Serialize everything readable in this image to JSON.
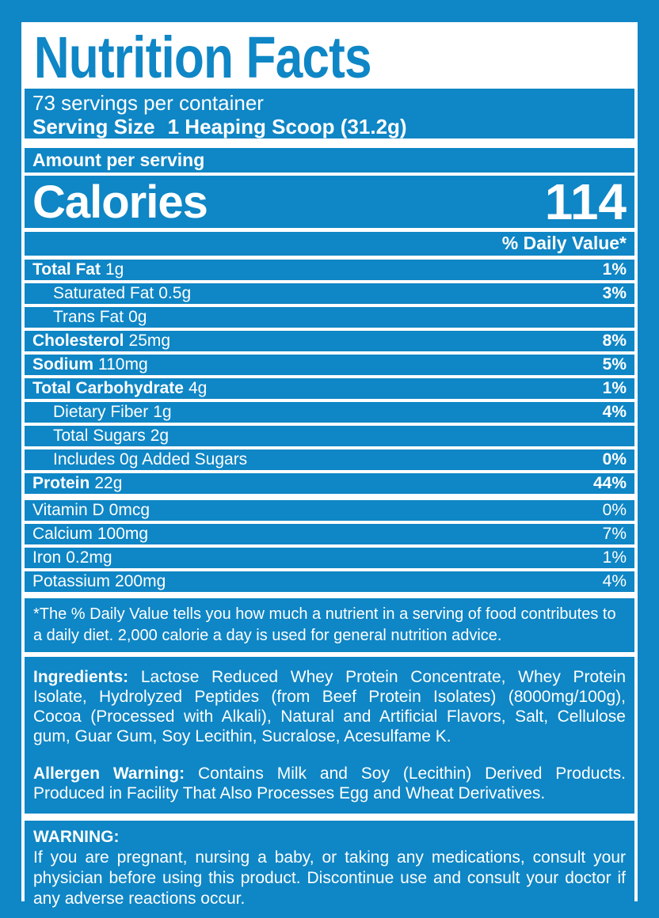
{
  "colors": {
    "blue": "#0f86c5",
    "white": "#ffffff"
  },
  "title": "Nutrition Facts",
  "servings": {
    "per_container": "73 servings per container",
    "serving_size_label": "Serving Size",
    "serving_size_value": "1 Heaping Scoop (31.2g)"
  },
  "amount_per_serving": "Amount per serving",
  "calories": {
    "label": "Calories",
    "value": "114"
  },
  "daily_value_header": "% Daily Value*",
  "nutrients": [
    {
      "label": "Total Fat",
      "amount": "1g",
      "dv": "1%",
      "label_bold": true,
      "dv_bold": true,
      "indent": false,
      "gap_after": false
    },
    {
      "label": "Saturated Fat",
      "amount": "0.5g",
      "dv": "3%",
      "label_bold": false,
      "dv_bold": true,
      "indent": true,
      "gap_after": false
    },
    {
      "label": "Trans Fat",
      "amount": "0g",
      "dv": "",
      "label_bold": false,
      "dv_bold": false,
      "indent": true,
      "gap_after": false
    },
    {
      "label": "Cholesterol",
      "amount": "25mg",
      "dv": "8%",
      "label_bold": true,
      "dv_bold": true,
      "indent": false,
      "gap_after": false
    },
    {
      "label": "Sodium",
      "amount": "110mg",
      "dv": "5%",
      "label_bold": true,
      "dv_bold": true,
      "indent": false,
      "gap_after": false
    },
    {
      "label": "Total Carbohydrate",
      "amount": "4g",
      "dv": "1%",
      "label_bold": true,
      "dv_bold": true,
      "indent": false,
      "gap_after": false
    },
    {
      "label": "Dietary Fiber",
      "amount": "1g",
      "dv": "4%",
      "label_bold": false,
      "dv_bold": true,
      "indent": true,
      "gap_after": false
    },
    {
      "label": "Total Sugars",
      "amount": "2g",
      "dv": "",
      "label_bold": false,
      "dv_bold": false,
      "indent": true,
      "gap_after": false
    },
    {
      "label": "Includes 0g Added Sugars",
      "amount": "",
      "dv": "0%",
      "label_bold": false,
      "dv_bold": true,
      "indent": true,
      "gap_after": false
    },
    {
      "label": "Protein",
      "amount": "22g",
      "dv": "44%",
      "label_bold": true,
      "dv_bold": true,
      "indent": false,
      "gap_after": true
    },
    {
      "label": "Vitamin D",
      "amount": "0mcg",
      "dv": "0%",
      "label_bold": false,
      "dv_bold": false,
      "indent": false,
      "gap_after": false
    },
    {
      "label": "Calcium",
      "amount": "100mg",
      "dv": "7%",
      "label_bold": false,
      "dv_bold": false,
      "indent": false,
      "gap_after": false
    },
    {
      "label": "Iron",
      "amount": "0.2mg",
      "dv": "1%",
      "label_bold": false,
      "dv_bold": false,
      "indent": false,
      "gap_after": false
    },
    {
      "label": "Potassium",
      "amount": "200mg",
      "dv": "4%",
      "label_bold": false,
      "dv_bold": false,
      "indent": false,
      "gap_after": false
    }
  ],
  "footnote": "*The % Daily Value tells you how much a nutrient in a serving of food contributes to a daily diet. 2,000 calorie a day is used for general nutrition advice.",
  "ingredients": {
    "label": "Ingredients:",
    "text": "Lactose Reduced Whey Protein Concentrate, Whey Protein Isolate, Hydrolyzed Peptides (from Beef Protein Isolates) (8000mg/100g), Cocoa (Processed with Alkali), Natural and Artificial Flavors, Salt, Cellulose gum, Guar Gum, Soy Lecithin, Sucralose, Acesulfame K."
  },
  "allergen": {
    "label": "Allergen Warning:",
    "text": "Contains Milk and Soy (Lecithin) Derived Products. Produced in Facility That Also Processes Egg and Wheat Derivatives."
  },
  "warning": {
    "label": "WARNING:",
    "text": "If you are pregnant, nursing a baby, or taking any medications, consult your physician before using this product. Discontinue use and consult your doctor if any adverse reactions occur."
  }
}
